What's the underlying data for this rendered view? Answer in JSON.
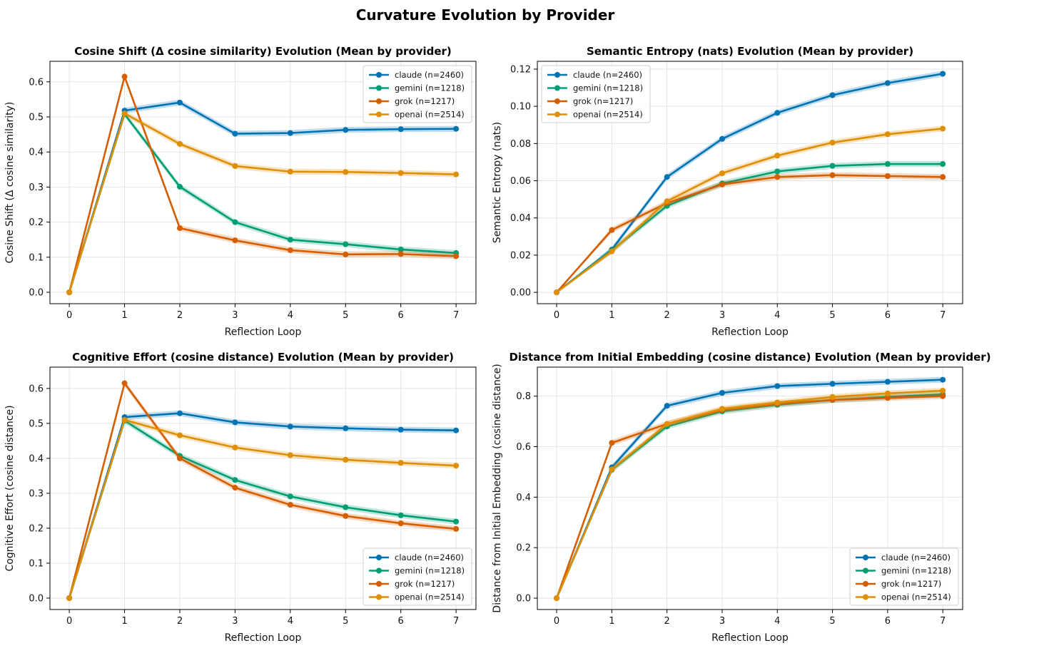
{
  "chart_data": {
    "title": "Curvature Evolution by Provider",
    "colors": {
      "claude": "#0173b2",
      "gemini": "#029e73",
      "grok": "#d55e00",
      "openai": "#de8f05"
    },
    "plots": [
      {
        "type": "line",
        "title": "Cosine Shift (Δ cosine similarity) Evolution (Mean by provider)",
        "xlabel": "Reflection Loop",
        "ylabel": "Cosine Shift (Δ cosine similarity)",
        "x": [
          0,
          1,
          2,
          3,
          4,
          5,
          6,
          7
        ],
        "xlim": [
          -0.35,
          7.36
        ],
        "ylim": [
          -0.0325,
          0.6585
        ],
        "yticks": [
          0.0,
          0.1,
          0.2,
          0.3,
          0.4,
          0.5,
          0.6
        ],
        "ytick_labels": [
          "0.0",
          "0.1",
          "0.2",
          "0.3",
          "0.4",
          "0.5",
          "0.6"
        ],
        "grid": true,
        "legend": "top-right",
        "series": [
          {
            "key": "claude",
            "name": "claude (n=2460)",
            "values": [
              0,
              0.518,
              0.541,
              0.452,
              0.454,
              0.463,
              0.465,
              0.466
            ]
          },
          {
            "key": "gemini",
            "name": "gemini (n=1218)",
            "values": [
              0,
              0.508,
              0.301,
              0.2,
              0.15,
              0.137,
              0.122,
              0.112
            ]
          },
          {
            "key": "grok",
            "name": "grok (n=1217)",
            "values": [
              0,
              0.615,
              0.183,
              0.148,
              0.12,
              0.108,
              0.109,
              0.103
            ]
          },
          {
            "key": "openai",
            "name": "openai (n=2514)",
            "values": [
              0,
              0.51,
              0.423,
              0.36,
              0.344,
              0.343,
              0.34,
              0.336
            ]
          }
        ]
      },
      {
        "type": "line",
        "title": "Semantic Entropy (nats) Evolution (Mean by provider)",
        "xlabel": "Reflection Loop",
        "ylabel": "Semantic Entropy (nats)",
        "x": [
          0,
          1,
          2,
          3,
          4,
          5,
          6,
          7
        ],
        "xlim": [
          -0.35,
          7.36
        ],
        "ylim": [
          -0.0061,
          0.1242
        ],
        "yticks": [
          0,
          0.02,
          0.04,
          0.06,
          0.08,
          0.1,
          0.12
        ],
        "ytick_labels": [
          "0.00",
          "0.02",
          "0.04",
          "0.06",
          "0.08",
          "0.10",
          "0.12"
        ],
        "grid": true,
        "legend": "top-left",
        "series": [
          {
            "key": "claude",
            "name": "claude (n=2460)",
            "values": [
              0,
              0.023,
              0.062,
              0.0825,
              0.0965,
              0.106,
              0.1125,
              0.1175
            ]
          },
          {
            "key": "gemini",
            "name": "gemini (n=1218)",
            "values": [
              0,
              0.0225,
              0.0465,
              0.0585,
              0.065,
              0.068,
              0.069,
              0.069
            ]
          },
          {
            "key": "grok",
            "name": "grok (n=1217)",
            "values": [
              0,
              0.0335,
              0.048,
              0.058,
              0.062,
              0.063,
              0.0625,
              0.062
            ]
          },
          {
            "key": "openai",
            "name": "openai (n=2514)",
            "values": [
              0,
              0.022,
              0.049,
              0.064,
              0.0735,
              0.0805,
              0.085,
              0.088
            ]
          }
        ]
      },
      {
        "type": "line",
        "title": "Cognitive Effort (cosine distance) Evolution (Mean by provider)",
        "xlabel": "Reflection Loop",
        "ylabel": "Cognitive Effort (cosine distance)",
        "x": [
          0,
          1,
          2,
          3,
          4,
          5,
          6,
          7
        ],
        "xlim": [
          -0.35,
          7.36
        ],
        "ylim": [
          -0.0327,
          0.661
        ],
        "yticks": [
          0.0,
          0.1,
          0.2,
          0.3,
          0.4,
          0.5,
          0.6
        ],
        "ytick_labels": [
          "0.0",
          "0.1",
          "0.2",
          "0.3",
          "0.4",
          "0.5",
          "0.6"
        ],
        "grid": true,
        "legend": "bottom-right",
        "series": [
          {
            "key": "claude",
            "name": "claude (n=2460)",
            "values": [
              0,
              0.518,
              0.529,
              0.503,
              0.491,
              0.486,
              0.482,
              0.48
            ]
          },
          {
            "key": "gemini",
            "name": "gemini (n=1218)",
            "values": [
              0,
              0.508,
              0.407,
              0.338,
              0.291,
              0.26,
              0.237,
              0.219
            ]
          },
          {
            "key": "grok",
            "name": "grok (n=1217)",
            "values": [
              0,
              0.615,
              0.4,
              0.316,
              0.267,
              0.235,
              0.214,
              0.198
            ]
          },
          {
            "key": "openai",
            "name": "openai (n=2514)",
            "values": [
              0,
              0.51,
              0.466,
              0.431,
              0.409,
              0.396,
              0.387,
              0.379
            ]
          }
        ]
      },
      {
        "type": "line",
        "title": "Distance from Initial Embedding (cosine distance) Evolution (Mean by provider)",
        "xlabel": "Reflection Loop",
        "ylabel": "Distance from Initial Embedding (cosine distance)",
        "x": [
          0,
          1,
          2,
          3,
          4,
          5,
          6,
          7
        ],
        "xlim": [
          -0.35,
          7.36
        ],
        "ylim": [
          -0.045,
          0.915
        ],
        "yticks": [
          0.0,
          0.2,
          0.4,
          0.6,
          0.8
        ],
        "ytick_labels": [
          "0.0",
          "0.2",
          "0.4",
          "0.6",
          "0.8"
        ],
        "grid": true,
        "legend": "bottom-right",
        "series": [
          {
            "key": "claude",
            "name": "claude (n=2460)",
            "values": [
              0,
              0.518,
              0.762,
              0.813,
              0.84,
              0.849,
              0.857,
              0.865
            ]
          },
          {
            "key": "gemini",
            "name": "gemini (n=1218)",
            "values": [
              0,
              0.508,
              0.68,
              0.74,
              0.766,
              0.785,
              0.797,
              0.807
            ]
          },
          {
            "key": "grok",
            "name": "grok (n=1217)",
            "values": [
              0,
              0.615,
              0.69,
              0.745,
              0.77,
              0.785,
              0.793,
              0.8
            ]
          },
          {
            "key": "openai",
            "name": "openai (n=2514)",
            "values": [
              0,
              0.51,
              0.69,
              0.75,
              0.775,
              0.797,
              0.811,
              0.822
            ]
          }
        ]
      }
    ]
  }
}
